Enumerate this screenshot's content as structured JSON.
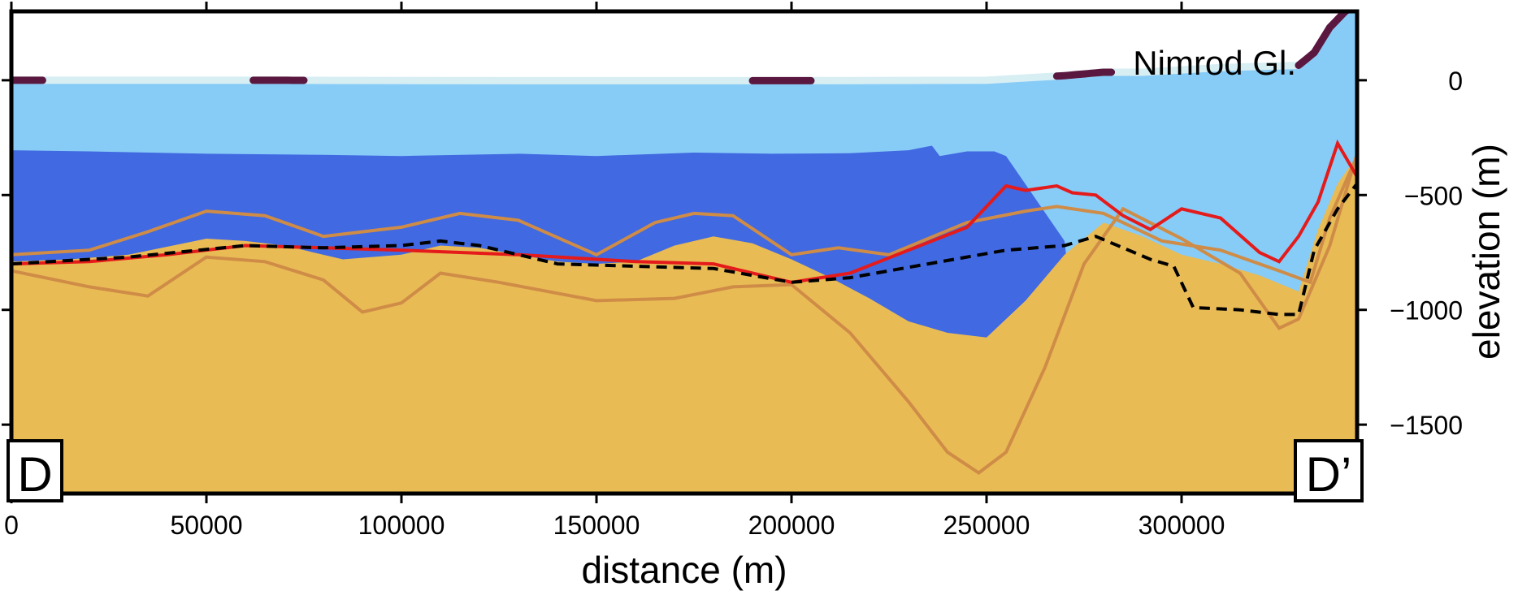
{
  "chart_data": {
    "type": "area",
    "title": "",
    "xlabel": "distance (m)",
    "ylabel": "elevation (m)",
    "xlim": [
      0,
      345000
    ],
    "ylim": [
      -1800,
      300
    ],
    "x_ticks": [
      0,
      50000,
      100000,
      150000,
      200000,
      250000,
      300000
    ],
    "x_tick_labels": [
      "0",
      "50000",
      "100000",
      "150000",
      "200000",
      "250000",
      "300000"
    ],
    "y_ticks": [
      0,
      -500,
      -1000,
      -1500
    ],
    "y_tick_labels": [
      "0",
      "−500",
      "−1000",
      "−1500"
    ],
    "annotations": {
      "glacier_label": "Nimrod Gl.",
      "left_corner": "D",
      "right_corner": "D’"
    },
    "colors": {
      "ice": "#87cbf7",
      "water": "#4169e1",
      "bed": "#e9bb55",
      "bed_contours": "#cf8c47",
      "red_line": "#e51a1a",
      "dashed_line": "#000000",
      "surface_dark": "#5a1840",
      "surface_light": "#d7eef3"
    },
    "series": [
      {
        "role": "ice-surface",
        "x": [
          0,
          60000,
          130000,
          200000,
          250000,
          260000,
          270000,
          280000,
          290000,
          300000,
          310000,
          320000,
          330000,
          334000,
          338000,
          342000,
          345000
        ],
        "values": [
          0,
          0,
          -2,
          -2,
          0,
          10,
          20,
          35,
          35,
          45,
          55,
          60,
          65,
          120,
          230,
          300,
          330
        ]
      },
      {
        "role": "ice-base",
        "x": [
          0,
          20000,
          50000,
          80000,
          100000,
          130000,
          150000,
          175000,
          195000,
          215000,
          230000,
          236000,
          238000,
          245000,
          252000,
          255000
        ],
        "values": [
          -305,
          -310,
          -320,
          -325,
          -330,
          -320,
          -330,
          -315,
          -320,
          -318,
          -305,
          -285,
          -330,
          -310,
          -310,
          -330
        ]
      },
      {
        "role": "bed-surface",
        "x": [
          0,
          15000,
          30000,
          50000,
          60000,
          70000,
          85000,
          100000,
          110000,
          120000,
          130000,
          140000,
          150000,
          160000,
          170000,
          180000,
          190000,
          200000,
          210000,
          220000,
          230000,
          240000,
          250000,
          260000,
          270000,
          280000,
          290000,
          300000,
          310000,
          320000,
          330000,
          335000,
          340000,
          345000
        ],
        "values": [
          -790,
          -780,
          -760,
          -690,
          -700,
          -720,
          -780,
          -760,
          -720,
          -730,
          -760,
          -790,
          -800,
          -790,
          -720,
          -680,
          -710,
          -780,
          -860,
          -950,
          -1050,
          -1100,
          -1120,
          -960,
          -760,
          -620,
          -680,
          -760,
          -800,
          -850,
          -920,
          -650,
          -450,
          -330
        ]
      },
      {
        "role": "bed-contour-upper",
        "x": [
          0,
          20000,
          35000,
          50000,
          65000,
          80000,
          100000,
          115000,
          130000,
          150000,
          165000,
          175000,
          185000,
          200000,
          212000,
          225000,
          245000,
          260000,
          268000,
          280000,
          295000,
          310000,
          325000,
          333000,
          338000,
          345000
        ],
        "values": [
          -760,
          -740,
          -660,
          -570,
          -590,
          -680,
          -640,
          -580,
          -610,
          -760,
          -620,
          -580,
          -590,
          -760,
          -730,
          -760,
          -620,
          -570,
          -550,
          -580,
          -700,
          -740,
          -830,
          -880,
          -600,
          -330
        ]
      },
      {
        "role": "bed-contour-lower",
        "x": [
          0,
          20000,
          35000,
          50000,
          65000,
          80000,
          90000,
          100000,
          110000,
          125000,
          150000,
          170000,
          185000,
          200000,
          215000,
          230000,
          240000,
          248000,
          255000,
          265000,
          275000,
          285000,
          300000,
          315000,
          325000,
          330000,
          338000,
          345000
        ],
        "values": [
          -830,
          -900,
          -940,
          -770,
          -790,
          -870,
          -1010,
          -970,
          -840,
          -880,
          -960,
          -950,
          -900,
          -890,
          -1100,
          -1400,
          -1620,
          -1710,
          -1620,
          -1250,
          -800,
          -560,
          -690,
          -840,
          -1080,
          -1040,
          -720,
          -320
        ]
      },
      {
        "role": "red-line",
        "x": [
          0,
          20000,
          40000,
          60000,
          80000,
          100000,
          130000,
          160000,
          180000,
          200000,
          215000,
          230000,
          245000,
          255000,
          260000,
          268000,
          272000,
          278000,
          285000,
          292000,
          300000,
          310000,
          320000,
          325000,
          330000,
          335000,
          340000,
          345000
        ],
        "values": [
          -800,
          -790,
          -760,
          -720,
          -730,
          -740,
          -760,
          -790,
          -800,
          -880,
          -840,
          -740,
          -640,
          -460,
          -480,
          -460,
          -490,
          -500,
          -590,
          -650,
          -560,
          -600,
          -750,
          -790,
          -680,
          -530,
          -275,
          -420
        ]
      },
      {
        "role": "dashed-black-line",
        "x": [
          0,
          30000,
          60000,
          80000,
          100000,
          110000,
          120000,
          140000,
          160000,
          180000,
          200000,
          215000,
          235000,
          255000,
          270000,
          278000,
          285000,
          292000,
          298000,
          303000,
          315000,
          325000,
          330000,
          334000,
          340000,
          345000
        ],
        "values": [
          -800,
          -770,
          -720,
          -730,
          -720,
          -700,
          -720,
          -800,
          -810,
          -820,
          -880,
          -860,
          -800,
          -740,
          -720,
          -680,
          -730,
          -780,
          -810,
          -990,
          -1000,
          -1020,
          -1020,
          -740,
          -560,
          -450
        ]
      }
    ]
  }
}
